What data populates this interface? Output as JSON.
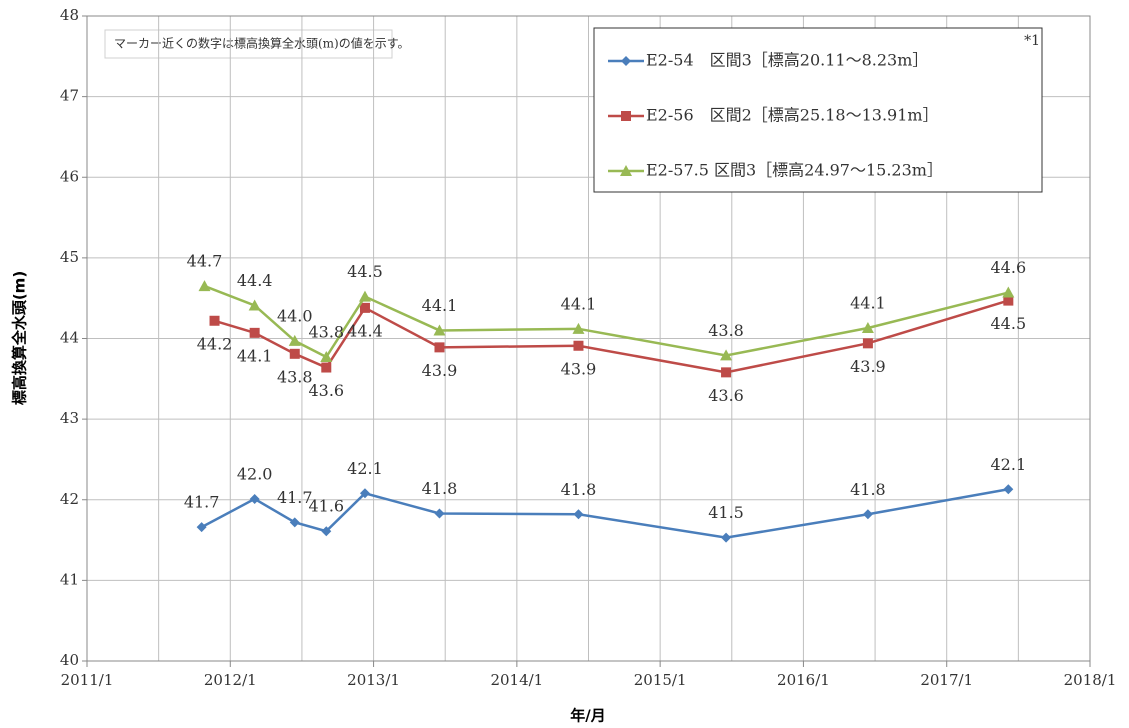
{
  "chart_data": {
    "type": "line",
    "annotation": "マーカー近くの数字は標高換算全水頭(m)の値を示す。",
    "xlabel": "年/月",
    "ylabel": "標高換算全水頭(m)",
    "legend_note": "*1",
    "xlim": [
      2011,
      2018
    ],
    "xticks": [
      {
        "value": 2011,
        "label": "2011/1"
      },
      {
        "value": 2012,
        "label": "2012/1"
      },
      {
        "value": 2013,
        "label": "2013/1"
      },
      {
        "value": 2014,
        "label": "2014/1"
      },
      {
        "value": 2015,
        "label": "2015/1"
      },
      {
        "value": 2016,
        "label": "2016/1"
      },
      {
        "value": 2017,
        "label": "2017/1"
      },
      {
        "value": 2018,
        "label": "2018/1"
      }
    ],
    "xminor": [
      2011.5,
      2012.5,
      2013.5,
      2014.5,
      2015.5,
      2016.5,
      2017.5
    ],
    "ylim": [
      40,
      48
    ],
    "yticks": [
      40,
      41,
      42,
      43,
      44,
      45,
      46,
      47,
      48
    ],
    "grid": true,
    "legend": "upper right",
    "series": [
      {
        "name": "E2-54　区間3［標高20.11～8.23m］",
        "color": "#4a7ebb",
        "marker": "diamond",
        "label_side": "above",
        "x": [
          2011.8,
          2012.17,
          2012.45,
          2012.67,
          2012.94,
          2013.46,
          2014.43,
          2015.46,
          2016.45,
          2017.43
        ],
        "values": [
          41.66,
          42.01,
          41.72,
          41.61,
          42.08,
          41.83,
          41.82,
          41.53,
          41.82,
          42.13
        ],
        "value_labels": [
          "41.7",
          "42.0",
          "41.7",
          "41.6",
          "42.1",
          "41.8",
          "41.8",
          "41.5",
          "41.8",
          "42.1"
        ]
      },
      {
        "name": "E2-56　区間2［標高25.18～13.91m］",
        "color": "#be4b48",
        "marker": "square",
        "label_side": "below",
        "x": [
          2011.89,
          2012.17,
          2012.45,
          2012.67,
          2012.94,
          2013.46,
          2014.43,
          2015.46,
          2016.45,
          2017.43
        ],
        "values": [
          44.22,
          44.07,
          43.81,
          43.64,
          44.38,
          43.89,
          43.91,
          43.58,
          43.94,
          44.47
        ],
        "value_labels": [
          "44.2",
          "44.1",
          "43.8",
          "43.6",
          "44.4",
          "43.9",
          "43.9",
          "43.6",
          "43.9",
          "44.5"
        ]
      },
      {
        "name": "E2-57.5 区間3［標高24.97～15.23m］",
        "color": "#98b954",
        "marker": "triangle",
        "label_side": "above",
        "x": [
          2011.82,
          2012.17,
          2012.45,
          2012.67,
          2012.94,
          2013.46,
          2014.43,
          2015.46,
          2016.45,
          2017.43
        ],
        "values": [
          44.65,
          44.41,
          43.97,
          43.77,
          44.52,
          44.1,
          44.12,
          43.79,
          44.13,
          44.57
        ],
        "value_labels": [
          "44.7",
          "44.4",
          "44.0",
          "43.8",
          "44.5",
          "44.1",
          "44.1",
          "43.8",
          "44.1",
          "44.6"
        ]
      }
    ]
  }
}
